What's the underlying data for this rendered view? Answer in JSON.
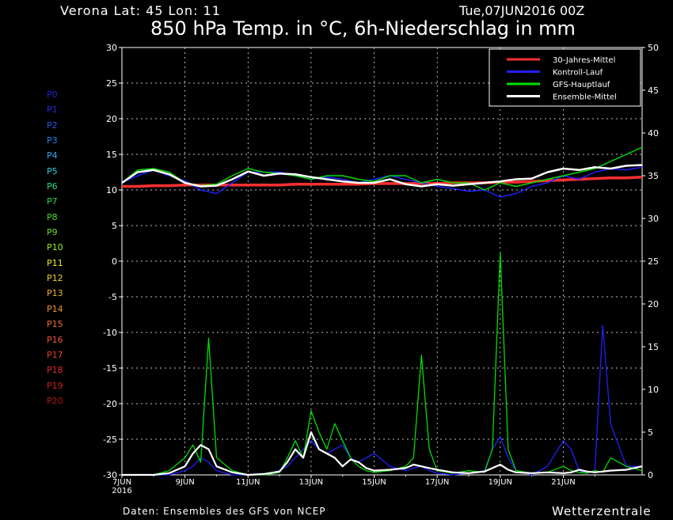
{
  "header": {
    "location": "Verona   Lat: 45  Lon: 11",
    "run_date": "Tue,07JUN2016 00Z",
    "title": "850 hPa Temp. in °C, 6h-Niederschlag in mm"
  },
  "footer": {
    "source": "Daten: Ensembles des GFS von NCEP",
    "brand": "Wetterzentrale"
  },
  "members": [
    {
      "label": "P0",
      "color": "#2323cc"
    },
    {
      "label": "P1",
      "color": "#2828e0"
    },
    {
      "label": "P2",
      "color": "#2a55f0"
    },
    {
      "label": "P3",
      "color": "#2a7ef0"
    },
    {
      "label": "P4",
      "color": "#2aa8f0"
    },
    {
      "label": "P5",
      "color": "#2ad0e0"
    },
    {
      "label": "P6",
      "color": "#22dd88"
    },
    {
      "label": "P7",
      "color": "#22dd44"
    },
    {
      "label": "P8",
      "color": "#44dd22"
    },
    {
      "label": "P9",
      "color": "#66dd22"
    },
    {
      "label": "P10",
      "color": "#99ee22"
    },
    {
      "label": "P11",
      "color": "#eeee22"
    },
    {
      "label": "P12",
      "color": "#f0d030"
    },
    {
      "label": "P13",
      "color": "#f0b030"
    },
    {
      "label": "P14",
      "color": "#f09030"
    },
    {
      "label": "P15",
      "color": "#f07030"
    },
    {
      "label": "P16",
      "color": "#f05530"
    },
    {
      "label": "P17",
      "color": "#e84030"
    },
    {
      "label": "P18",
      "color": "#e02828"
    },
    {
      "label": "P19",
      "color": "#c82020"
    },
    {
      "label": "P20",
      "color": "#b01818"
    }
  ],
  "chart_data": {
    "type": "line",
    "x_labels": [
      "7JUN",
      "9JUN",
      "11JUN",
      "13JUN",
      "15JUN",
      "17JUN",
      "19JUN",
      "21JUN"
    ],
    "x_sublabel": "2016",
    "x_range_days": [
      7,
      23.5
    ],
    "y_left_ticks": [
      30,
      25,
      20,
      15,
      10,
      5,
      0,
      -5,
      -10,
      -15,
      -20,
      -25,
      -30
    ],
    "y_left_range": [
      -30,
      30
    ],
    "y_right_ticks": [
      50,
      45,
      40,
      35,
      30,
      25,
      20,
      15,
      10,
      5,
      0
    ],
    "y_right_range": [
      0,
      50
    ],
    "grid": true,
    "legend": {
      "placement": "top-right",
      "entries": [
        {
          "name": "30-Jahres-Mittel",
          "color": "#ff3030"
        },
        {
          "name": "Kontroll-Lauf",
          "color": "#2020ff"
        },
        {
          "name": "GFS-Hauptlauf",
          "color": "#00dd00"
        },
        {
          "name": "Ensemble-Mittel",
          "color": "#ffffff"
        }
      ]
    },
    "temperature": {
      "days": [
        7,
        7.5,
        8,
        8.5,
        9,
        9.5,
        10,
        10.5,
        11,
        11.5,
        12,
        12.5,
        13,
        13.5,
        14,
        14.5,
        15,
        15.5,
        16,
        16.5,
        17,
        17.5,
        18,
        18.5,
        19,
        19.5,
        20,
        20.5,
        21,
        21.5,
        22,
        22.5,
        23,
        23.5
      ],
      "climatology": [
        10.5,
        10.5,
        10.6,
        10.6,
        10.7,
        10.7,
        10.7,
        10.7,
        10.7,
        10.7,
        10.7,
        10.8,
        10.8,
        10.8,
        10.8,
        10.8,
        10.9,
        10.9,
        10.9,
        10.9,
        10.9,
        11.0,
        11.0,
        11.0,
        11.1,
        11.1,
        11.2,
        11.3,
        11.4,
        11.5,
        11.6,
        11.7,
        11.7,
        11.8
      ],
      "ensemble_mean": [
        11.0,
        12.5,
        12.8,
        12.2,
        11.0,
        10.5,
        10.6,
        11.5,
        12.6,
        12.0,
        12.3,
        12.2,
        11.8,
        11.5,
        11.2,
        11.0,
        11.0,
        11.5,
        10.8,
        10.5,
        10.8,
        10.6,
        10.8,
        11.0,
        11.2,
        11.5,
        11.6,
        12.5,
        13.0,
        12.8,
        13.2,
        13.0,
        13.4,
        13.5
      ],
      "control_run": [
        11.0,
        12.0,
        12.8,
        12.0,
        11.3,
        10.0,
        9.5,
        11.0,
        12.5,
        12.5,
        12.5,
        12.0,
        11.5,
        11.8,
        11.5,
        11.0,
        11.5,
        12.0,
        11.5,
        11.0,
        10.5,
        10.2,
        9.8,
        10.0,
        9.0,
        9.5,
        10.5,
        11.0,
        12.0,
        11.5,
        12.5,
        13.0,
        12.8,
        13.2
      ],
      "gfs_main": [
        11.0,
        12.8,
        13.0,
        12.5,
        11.0,
        10.6,
        10.8,
        12.0,
        13.0,
        12.5,
        12.3,
        12.0,
        11.5,
        12.0,
        12.0,
        11.5,
        11.2,
        12.0,
        12.0,
        11.0,
        11.5,
        11.0,
        11.0,
        10.0,
        11.0,
        10.5,
        11.0,
        11.5,
        12.0,
        12.5,
        13.0,
        14.0,
        15.0,
        16.0
      ]
    },
    "precipitation_mm": {
      "days": [
        7,
        7.5,
        8,
        8.5,
        9,
        9.25,
        9.5,
        9.75,
        10,
        10.5,
        11,
        11.5,
        12,
        12.25,
        12.5,
        12.75,
        13,
        13.25,
        13.5,
        13.75,
        14,
        14.25,
        14.5,
        14.75,
        15,
        15.5,
        16,
        16.25,
        16.5,
        16.75,
        17,
        17.5,
        18,
        18.5,
        18.75,
        19,
        19.25,
        19.5,
        20,
        20.5,
        21,
        21.25,
        21.5,
        21.75,
        22,
        22.25,
        22.5,
        23,
        23.5
      ],
      "ensemble_mean": [
        0,
        0,
        0,
        0.2,
        1.0,
        2.5,
        3.5,
        3.0,
        1.0,
        0.3,
        0,
        0.1,
        0.4,
        1.5,
        3.0,
        2.0,
        5.0,
        3.0,
        2.5,
        2.0,
        1.0,
        1.8,
        1.5,
        0.8,
        0.5,
        0.6,
        0.8,
        1.2,
        1.0,
        0.8,
        0.6,
        0.3,
        0.2,
        0.4,
        0.8,
        1.2,
        0.6,
        0.3,
        0.2,
        0.3,
        0.2,
        0.3,
        0.6,
        0.4,
        0.3,
        0.4,
        0.5,
        0.6,
        1.0
      ],
      "control_run": [
        0,
        0,
        0,
        0,
        0.5,
        1.0,
        2.0,
        1.5,
        0.5,
        0,
        0,
        0,
        0.5,
        1.0,
        2.0,
        3.0,
        4.0,
        3.0,
        2.5,
        3.0,
        3.5,
        2.0,
        1.5,
        2.0,
        2.5,
        1.0,
        0.5,
        0.8,
        1.0,
        0.5,
        0.2,
        0,
        0.2,
        0.5,
        3.0,
        4.5,
        2.0,
        0.5,
        0,
        1.0,
        4.0,
        3.0,
        0.5,
        0.2,
        0.5,
        17.5,
        6.0,
        1.0,
        1.0
      ],
      "gfs_main": [
        0,
        0,
        0,
        0.5,
        2.0,
        3.5,
        1.5,
        16.0,
        2.0,
        0.5,
        0,
        0,
        0.3,
        2.0,
        4.0,
        2.0,
        7.5,
        5.0,
        3.0,
        6.0,
        4.0,
        2.0,
        1.0,
        0.5,
        0.3,
        0.5,
        1.0,
        2.0,
        14.0,
        3.0,
        0.5,
        0.2,
        0.5,
        0.3,
        3.0,
        26.0,
        3.0,
        0.5,
        0.2,
        0.3,
        1.0,
        0.5,
        0.3,
        0.2,
        0.5,
        0.3,
        2.0,
        1.0,
        0.5
      ]
    }
  }
}
